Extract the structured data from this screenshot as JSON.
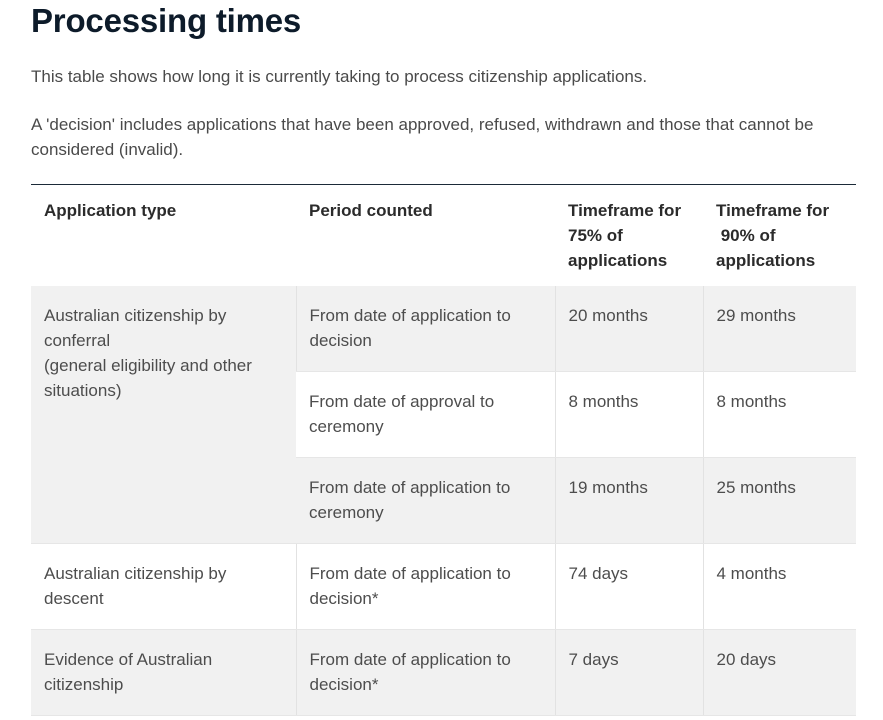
{
  "page": {
    "title": "Processing times",
    "intro": "This table shows how long it is currently taking to process citizenship applications.",
    "note": "A 'decision' includes applications that have been approved, refused, withdrawn and those that cannot be considered (invalid)."
  },
  "table": {
    "headers": {
      "application_type": "Application type",
      "period_counted": "Period counted",
      "timeframe_75": [
        "Timeframe for",
        "75% of",
        "applications"
      ],
      "timeframe_90": [
        "Timeframe for",
        " 90% of",
        "applications"
      ]
    },
    "rows": [
      {
        "application_type": [
          "Australian citizenship by",
          "conferral",
          "(general eligibility and other",
          "situations)"
        ],
        "period": "From date of application to decision",
        "t75": "20 months",
        "t90": "29 months"
      },
      {
        "period": "From date of approval to ceremony",
        "t75": "8 months",
        "t90": "8 months"
      },
      {
        "period": "From date of application to ceremony",
        "t75": "19 months",
        "t90": "25 months"
      },
      {
        "application_type": "Australian citizenship by descent",
        "period": "From date of application to decision*",
        "t75": "74 days",
        "t90": "4 months"
      },
      {
        "application_type": "Evidence of Australian citizenship",
        "period": "From date of application to decision*",
        "t75": "7 days",
        "t90": "20 days"
      }
    ]
  }
}
